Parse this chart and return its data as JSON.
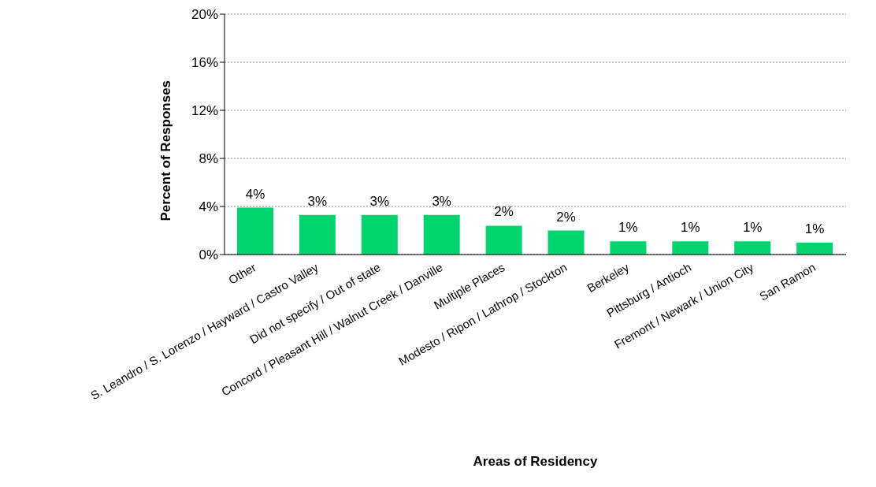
{
  "chart_data": {
    "type": "bar",
    "xlabel": "Areas of Residency",
    "ylabel": "Percent of Responses",
    "categories": [
      "Other",
      "S. Leandro / S. Lorenzo / Hayward / Castro Valley",
      "Did not specify / Out of state",
      "Concord / Pleasant Hill / Walnut Creek / Danville",
      "Multiple Places",
      "Modesto / Ripon / Lathrop / Stockton",
      "Berkeley",
      "Pittsburg / Antioch",
      "Fremont / Newark / Union City",
      "San Ramon"
    ],
    "values": [
      3.9,
      3.3,
      3.3,
      3.3,
      2.4,
      2.0,
      1.1,
      1.1,
      1.1,
      1.0
    ],
    "value_labels": [
      "4%",
      "3%",
      "3%",
      "3%",
      "2%",
      "2%",
      "1%",
      "1%",
      "1%",
      "1%"
    ],
    "color": "#00d46e",
    "ylim": [
      0,
      20
    ],
    "yticks": [
      {
        "value": 0,
        "label": "0%"
      },
      {
        "value": 4,
        "label": "4%"
      },
      {
        "value": 8,
        "label": "8%"
      },
      {
        "value": 12,
        "label": "12%"
      },
      {
        "value": 16,
        "label": "16%"
      },
      {
        "value": 20,
        "label": "20%"
      }
    ],
    "grid": "y",
    "legend": false
  }
}
